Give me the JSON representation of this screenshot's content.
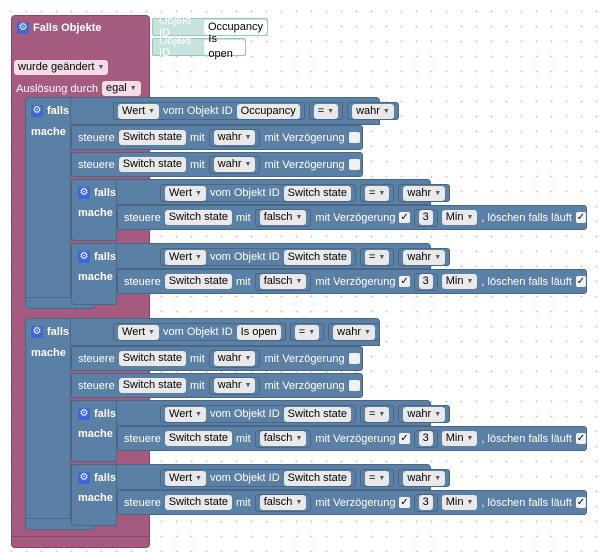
{
  "event_block": {
    "title": "Falls Objekte",
    "objects": [
      {
        "label": "Objekt ID",
        "value": "Occupancy"
      },
      {
        "label": "Objekt ID",
        "value": "Is open"
      }
    ],
    "trigger": "wurde geändert",
    "trigger_by_label": "Auslösung durch",
    "trigger_by_value": "egal"
  },
  "labels": {
    "if": "falls",
    "then": "mache",
    "control": "steuere",
    "with": "mit",
    "delay": "mit Verzögerung",
    "clear": ", löschen falls läuft",
    "value_of": "vom Objekt ID"
  },
  "outer_ifs": [
    {
      "condition": {
        "field": "Wert",
        "object": "Occupancy",
        "op": "=",
        "value": "wahr"
      },
      "controls": [
        {
          "object": "Switch state",
          "value": "wahr",
          "delay": false
        },
        {
          "object": "Switch state",
          "value": "wahr",
          "delay": false
        }
      ],
      "inner_ifs": [
        {
          "condition": {
            "field": "Wert",
            "object": "Switch state",
            "op": "=",
            "value": "wahr"
          },
          "control": {
            "object": "Switch state",
            "value": "falsch",
            "delay": true,
            "amount": "3",
            "unit": "Min",
            "clear": true
          }
        },
        {
          "condition": {
            "field": "Wert",
            "object": "Switch state",
            "op": "=",
            "value": "wahr"
          },
          "control": {
            "object": "Switch state",
            "value": "falsch",
            "delay": true,
            "amount": "3",
            "unit": "Min",
            "clear": true
          }
        }
      ]
    },
    {
      "condition": {
        "field": "Wert",
        "object": "Is open",
        "op": "=",
        "value": "wahr"
      },
      "controls": [
        {
          "object": "Switch state",
          "value": "wahr",
          "delay": false
        },
        {
          "object": "Switch state",
          "value": "wahr",
          "delay": false
        }
      ],
      "inner_ifs": [
        {
          "condition": {
            "field": "Wert",
            "object": "Switch state",
            "op": "=",
            "value": "wahr"
          },
          "control": {
            "object": "Switch state",
            "value": "falsch",
            "delay": true,
            "amount": "3",
            "unit": "Min",
            "clear": true
          }
        },
        {
          "condition": {
            "field": "Wert",
            "object": "Switch state",
            "op": "=",
            "value": "wahr"
          },
          "control": {
            "object": "Switch state",
            "value": "falsch",
            "delay": true,
            "amount": "3",
            "unit": "Min",
            "clear": true
          }
        }
      ]
    }
  ],
  "colors": {
    "event": "#a55b80",
    "logic": "#5b80a5",
    "object": "#c7e3df",
    "gear": "#3c66d9"
  }
}
